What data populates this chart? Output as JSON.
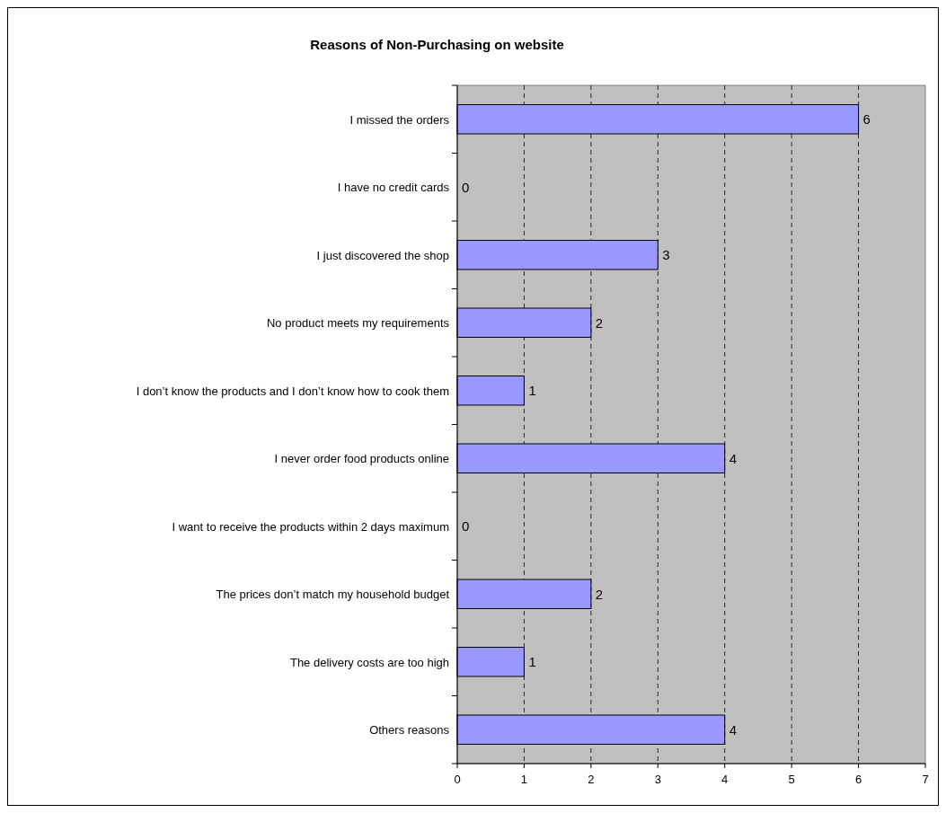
{
  "chart_data": {
    "type": "bar",
    "orientation": "horizontal",
    "title": "Reasons of Non-Purchasing on website",
    "categories": [
      "I missed the orders",
      "I have no credit cards",
      "I just discovered the shop",
      "No product meets my requirements",
      "I don’t know the products and I don’t know how to cook them",
      "I never order food products online",
      "I want to receive the products within 2 days maximum",
      "The prices don’t match my household budget",
      "The delivery costs are too high",
      "Others reasons"
    ],
    "values": [
      6,
      0,
      3,
      2,
      1,
      4,
      0,
      2,
      1,
      4
    ],
    "color": "#9999ff",
    "xlim": [
      0,
      7
    ],
    "xticks": [
      0,
      1,
      2,
      3,
      4,
      5,
      6,
      7
    ],
    "grid": "x",
    "data_labels": true
  }
}
